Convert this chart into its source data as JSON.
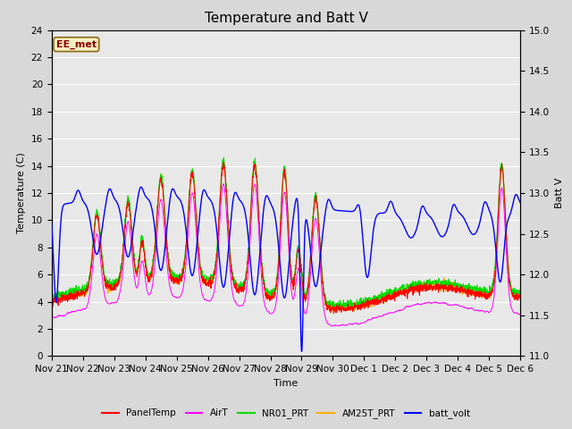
{
  "title": "Temperature and Batt V",
  "xlabel": "Time",
  "ylabel_left": "Temperature (C)",
  "ylabel_right": "Batt V",
  "annotation": "EE_met",
  "ylim_left": [
    0,
    24
  ],
  "ylim_right": [
    11.0,
    15.0
  ],
  "yticks_left": [
    0,
    2,
    4,
    6,
    8,
    10,
    12,
    14,
    16,
    18,
    20,
    22,
    24
  ],
  "yticks_right": [
    11.0,
    11.5,
    12.0,
    12.5,
    13.0,
    13.5,
    14.0,
    14.5,
    15.0
  ],
  "xtick_labels": [
    "Nov 21",
    "Nov 22",
    "Nov 23",
    "Nov 24",
    "Nov 25",
    "Nov 26",
    "Nov 27",
    "Nov 28",
    "Nov 29",
    "Nov 30",
    "Dec 1",
    "Dec 2",
    "Dec 3",
    "Dec 4",
    "Dec 5",
    "Dec 6"
  ],
  "n_days": 15,
  "series_colors": {
    "PanelTemp": "#ff0000",
    "AirT": "#ff00ff",
    "NR01_PRT": "#00dd00",
    "AM25T_PRT": "#ffaa00",
    "batt_volt": "#0000ff"
  },
  "legend_labels": [
    "PanelTemp",
    "AirT",
    "NR01_PRT",
    "AM25T_PRT",
    "batt_volt"
  ],
  "fig_bg_color": "#d8d8d8",
  "plot_bg_color": "#e8e8e8",
  "grid_color": "#ffffff",
  "title_fontsize": 11,
  "axis_fontsize": 8,
  "tick_fontsize": 7.5,
  "linewidth": 0.7
}
